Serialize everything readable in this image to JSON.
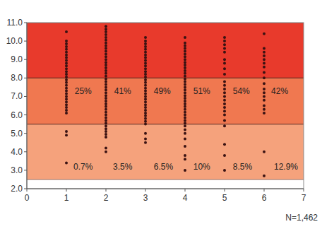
{
  "chart_data": {
    "type": "scatter",
    "xlim": [
      0,
      7
    ],
    "xticks": [
      0,
      1,
      2,
      3,
      4,
      5,
      6,
      7
    ],
    "ylim": [
      2,
      11
    ],
    "yticks": [
      {
        "value": 2,
        "label": "2.0"
      },
      {
        "value": 3,
        "label": "3.0"
      },
      {
        "value": 4,
        "label": "4.0"
      },
      {
        "value": 5,
        "label": "5.0"
      },
      {
        "value": 6,
        "label": "6.0"
      },
      {
        "value": 7,
        "label": "7.0"
      },
      {
        "value": 8,
        "label": "8.0"
      },
      {
        "value": 9,
        "label": "9.0"
      },
      {
        "value": 10,
        "label": "10.0"
      },
      {
        "value": 11,
        "label": "11.0"
      }
    ],
    "bands": [
      {
        "from": 2.5,
        "to": 5.5,
        "color": "#f5a27c"
      },
      {
        "from": 5.5,
        "to": 8,
        "color": "#f07850"
      },
      {
        "from": 8,
        "to": 11,
        "color": "#e83a2c"
      }
    ],
    "series": [
      {
        "color": "#3a1212",
        "marker": "circle",
        "x": [
          1,
          1,
          1,
          1,
          1,
          1,
          1,
          1,
          1,
          1,
          1,
          1,
          1,
          1,
          1,
          1,
          1,
          1,
          1,
          1,
          1,
          1,
          1,
          1,
          1,
          1,
          1,
          1,
          1,
          1,
          1,
          2,
          2,
          2,
          2,
          2,
          2,
          2,
          2,
          2,
          2,
          2,
          2,
          2,
          2,
          2,
          2,
          2,
          2,
          2,
          2,
          2,
          2,
          2,
          2,
          2,
          2,
          2,
          2,
          2,
          2,
          2,
          2,
          2,
          2,
          2,
          2,
          2,
          2,
          2,
          2,
          2,
          2,
          2,
          3,
          3,
          3,
          3,
          3,
          3,
          3,
          3,
          3,
          3,
          3,
          3,
          3,
          3,
          3,
          3,
          3,
          3,
          3,
          3,
          3,
          3,
          3,
          3,
          3,
          3,
          3,
          3,
          3,
          3,
          3,
          3,
          3,
          3,
          3,
          4,
          4,
          4,
          4,
          4,
          4,
          4,
          4,
          4,
          4,
          4,
          4,
          4,
          4,
          4,
          4,
          4,
          4,
          4,
          4,
          4,
          4,
          4,
          4,
          4,
          4,
          4,
          4,
          4,
          4,
          4,
          4,
          4,
          4,
          4,
          4,
          4,
          4,
          4,
          5,
          5,
          5,
          5,
          5,
          5,
          5,
          5,
          5,
          5,
          5,
          5,
          5,
          5,
          5,
          5,
          5,
          5,
          5,
          5,
          5,
          5,
          5,
          5,
          6,
          6,
          6,
          6,
          6,
          6,
          6,
          6,
          6,
          6,
          6,
          6,
          6,
          6,
          6,
          6,
          6,
          6,
          6
        ],
        "values": [
          10.5,
          10.0,
          9.85,
          9.7,
          9.55,
          9.4,
          9.25,
          9.1,
          8.95,
          8.8,
          8.65,
          8.5,
          8.35,
          8.2,
          8.05,
          7.9,
          7.75,
          7.6,
          7.45,
          7.3,
          7.15,
          7.0,
          6.85,
          6.7,
          6.55,
          6.4,
          6.25,
          6.1,
          5.1,
          4.9,
          3.4,
          10.8,
          10.65,
          10.5,
          10.35,
          10.2,
          10.05,
          9.9,
          9.75,
          9.6,
          9.45,
          9.3,
          9.15,
          9.0,
          8.85,
          8.7,
          8.55,
          8.4,
          8.25,
          8.1,
          7.95,
          7.8,
          7.65,
          7.5,
          7.35,
          7.2,
          7.05,
          6.9,
          6.75,
          6.6,
          6.45,
          6.3,
          6.15,
          6.0,
          5.85,
          5.7,
          5.55,
          5.4,
          5.25,
          5.1,
          4.95,
          4.8,
          4.2,
          4.0,
          10.2,
          10.0,
          9.85,
          9.7,
          9.55,
          9.4,
          9.25,
          9.1,
          8.95,
          8.8,
          8.65,
          8.5,
          8.35,
          8.2,
          8.05,
          7.9,
          7.75,
          7.6,
          7.45,
          7.3,
          7.15,
          7.0,
          6.85,
          6.7,
          6.55,
          6.4,
          6.25,
          6.1,
          5.95,
          5.8,
          5.65,
          5.5,
          5.0,
          4.7,
          4.5,
          10.2,
          9.9,
          9.75,
          9.6,
          9.45,
          9.3,
          9.15,
          9.0,
          8.85,
          8.7,
          8.55,
          8.4,
          8.25,
          8.1,
          7.95,
          7.8,
          7.65,
          7.5,
          7.35,
          7.2,
          7.05,
          6.9,
          6.75,
          6.6,
          6.45,
          6.3,
          6.15,
          6.0,
          5.85,
          5.7,
          5.55,
          5.4,
          5.2,
          5.0,
          4.7,
          4.3,
          3.8,
          3.6,
          3.0,
          10.2,
          10.0,
          9.8,
          9.6,
          9.4,
          9.0,
          8.8,
          8.5,
          8.2,
          7.8,
          7.6,
          7.4,
          7.2,
          7.0,
          6.8,
          6.6,
          6.4,
          6.2,
          6.0,
          5.7,
          5.4,
          4.4,
          3.8,
          3.0,
          10.4,
          9.6,
          9.4,
          9.2,
          9.0,
          8.8,
          8.6,
          8.3,
          8.0,
          7.7,
          7.4,
          7.2,
          7.0,
          6.8,
          6.5,
          6.3,
          6.1,
          4.0,
          2.7
        ]
      }
    ],
    "annotations": [
      {
        "text": "25%",
        "x": 1.21,
        "y": 7.3
      },
      {
        "text": "41%",
        "x": 2.21,
        "y": 7.3
      },
      {
        "text": "49%",
        "x": 3.21,
        "y": 7.3
      },
      {
        "text": "51%",
        "x": 4.21,
        "y": 7.3
      },
      {
        "text": "54%",
        "x": 5.21,
        "y": 7.3
      },
      {
        "text": "42%",
        "x": 6.18,
        "y": 7.3
      },
      {
        "text": "0.7%",
        "x": 1.18,
        "y": 3.2
      },
      {
        "text": "3.5%",
        "x": 2.18,
        "y": 3.2
      },
      {
        "text": "6.5%",
        "x": 3.21,
        "y": 3.2
      },
      {
        "text": "10%",
        "x": 4.21,
        "y": 3.2
      },
      {
        "text": "8.5%",
        "x": 5.21,
        "y": 3.2
      },
      {
        "text": "12.9%",
        "x": 6.25,
        "y": 3.2
      }
    ],
    "note": "N=1,462"
  }
}
